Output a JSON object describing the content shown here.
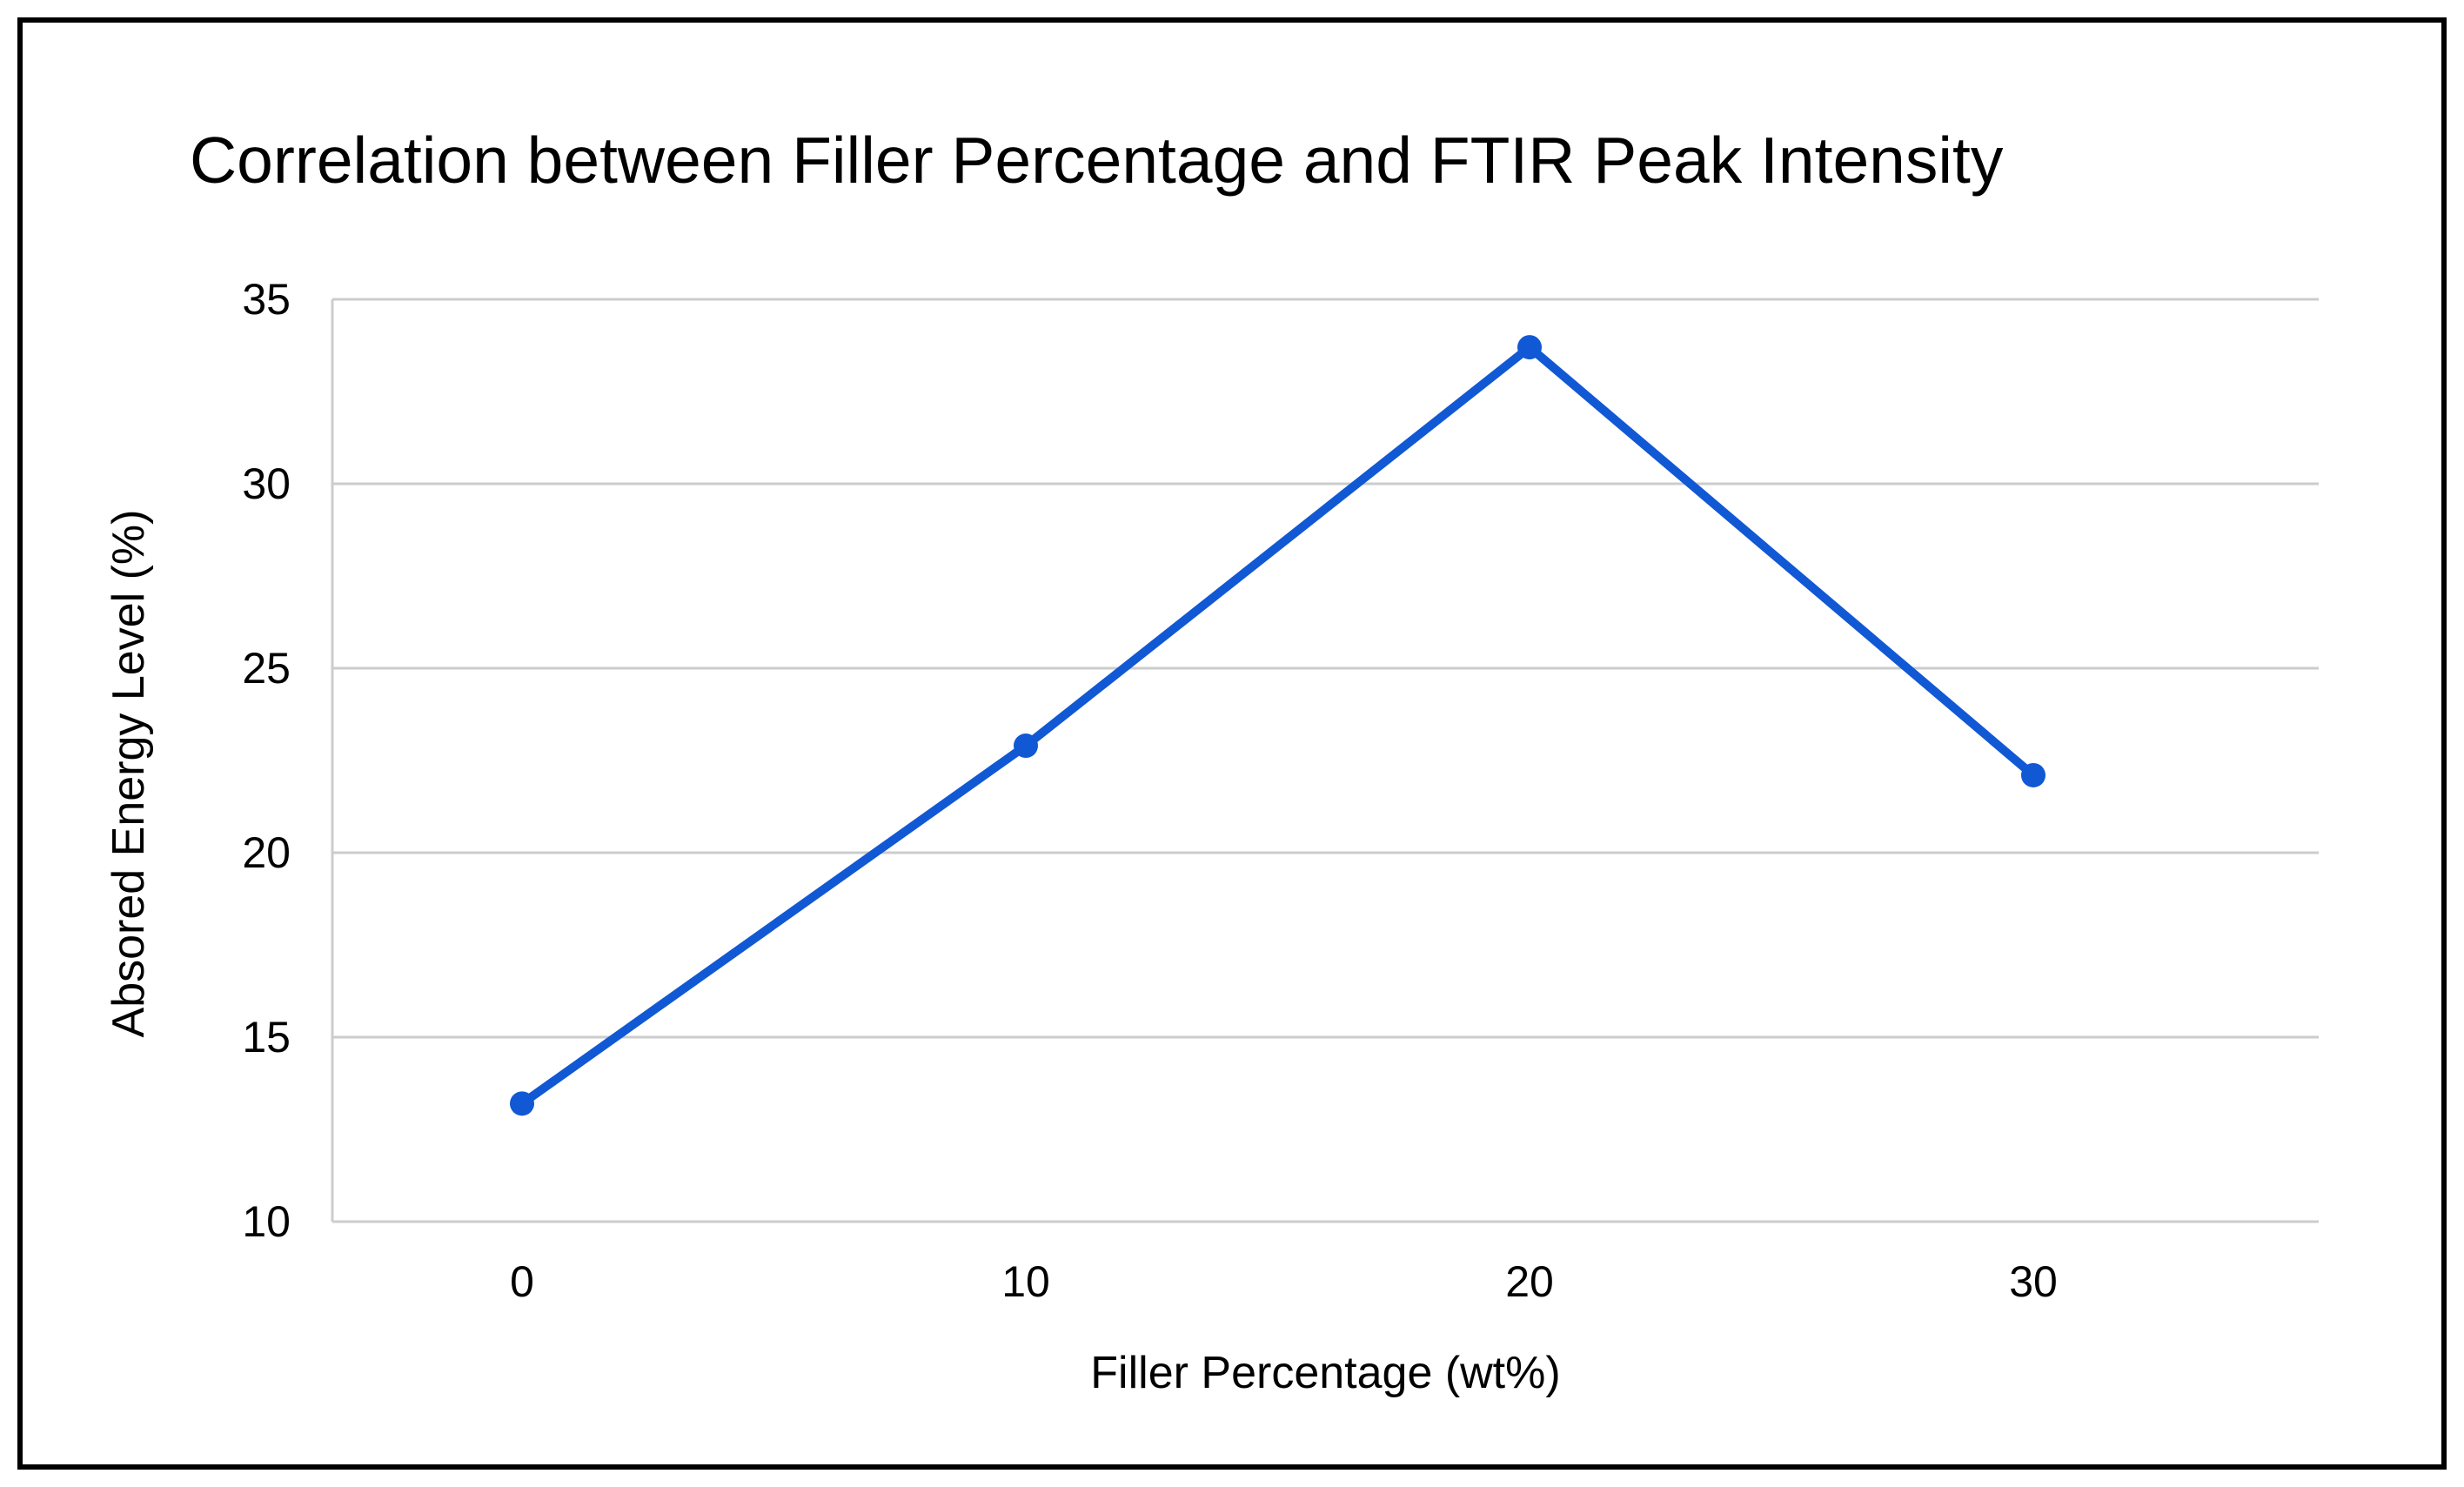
{
  "page": {
    "background": "#ffffff",
    "frame_color": "#000000"
  },
  "chart_data": {
    "type": "line",
    "title": "Correlation between Filler Percentage and FTIR Peak Intensity",
    "xlabel": "Filler Percentage (wt%)",
    "ylabel": "Absored Energy Level (%)",
    "x": [
      0,
      10,
      20,
      30
    ],
    "x_tick_labels": [
      "0",
      "10",
      "20",
      "30"
    ],
    "values": [
      13.2,
      22.9,
      33.7,
      22.1
    ],
    "y_ticks": [
      10,
      15,
      20,
      25,
      30,
      35
    ],
    "ylim": [
      10,
      35
    ],
    "grid": "horizontal",
    "legend": "none",
    "marker": "circle",
    "colors": {
      "line": "#1158d4",
      "grid": "#cccccc",
      "text": "#000000"
    }
  }
}
